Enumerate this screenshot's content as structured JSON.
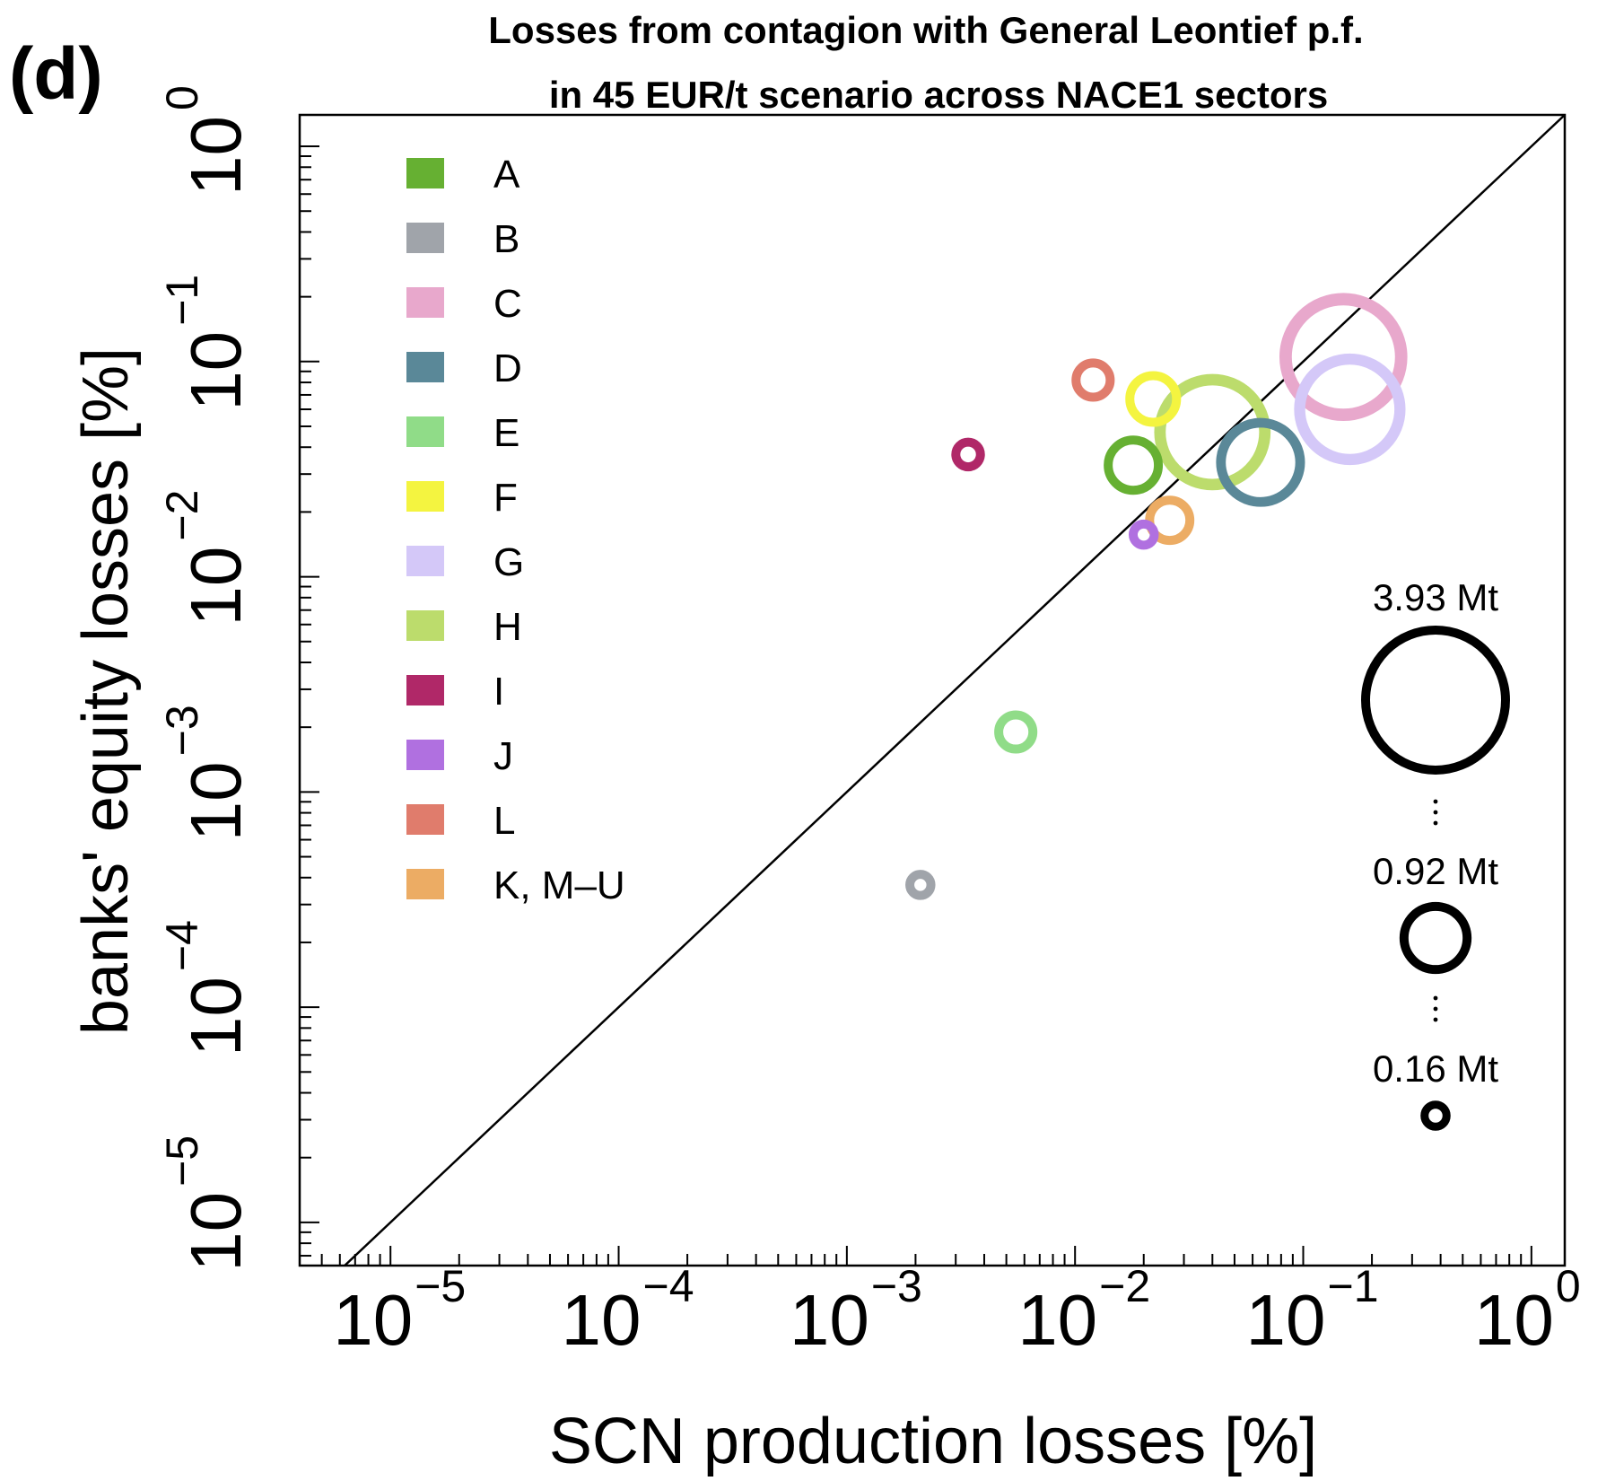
{
  "panel_label": "(d)",
  "chart_data": {
    "type": "scatter",
    "title": "Losses from contagion with General Leontief p.f.",
    "subtitle": "in 45 EUR/t scenario across NACE1 sectors",
    "xlabel": "SCN production losses [%]",
    "ylabel": "banks' equity losses [%]",
    "x_scale": "log",
    "y_scale": "log",
    "xlim": [
      4e-06,
      1.4
    ],
    "ylim": [
      6.3e-06,
      1.4
    ],
    "grid": false,
    "diagonal": "y = x",
    "x_ticks": [
      {
        "base": "10",
        "exp": "−5",
        "value": 1e-05
      },
      {
        "base": "10",
        "exp": "−4",
        "value": 0.0001
      },
      {
        "base": "10",
        "exp": "−3",
        "value": 0.001
      },
      {
        "base": "10",
        "exp": "−2",
        "value": 0.01
      },
      {
        "base": "10",
        "exp": "−1",
        "value": 0.1
      },
      {
        "base": "10",
        "exp": "0",
        "value": 1
      }
    ],
    "y_ticks": [
      {
        "base": "10",
        "exp": "−5",
        "value": 1e-05
      },
      {
        "base": "10",
        "exp": "−4",
        "value": 0.0001
      },
      {
        "base": "10",
        "exp": "−3",
        "value": 0.001
      },
      {
        "base": "10",
        "exp": "−2",
        "value": 0.01
      },
      {
        "base": "10",
        "exp": "−1",
        "value": 0.1
      },
      {
        "base": "10",
        "exp": "0",
        "value": 1
      }
    ],
    "legend_position": "top-left",
    "size_unit": "Mt",
    "series": [
      {
        "name": "A",
        "color": "#66b032",
        "x": 0.018,
        "y": 0.033,
        "size_mt": 0.62
      },
      {
        "name": "B",
        "color": "#a0a4aa",
        "x": 0.0021,
        "y": 0.00037,
        "size_mt": 0.16
      },
      {
        "name": "C",
        "color": "#e8a8cc",
        "x": 0.15,
        "y": 0.105,
        "size_mt": 2.9
      },
      {
        "name": "D",
        "color": "#5a8898",
        "x": 0.065,
        "y": 0.034,
        "size_mt": 1.4
      },
      {
        "name": "E",
        "color": "#90dc88",
        "x": 0.0055,
        "y": 0.0019,
        "size_mt": 0.33
      },
      {
        "name": "F",
        "color": "#f4f440",
        "x": 0.022,
        "y": 0.067,
        "size_mt": 0.55
      },
      {
        "name": "G",
        "color": "#d4c8f8",
        "x": 0.16,
        "y": 0.06,
        "size_mt": 2.2
      },
      {
        "name": "H",
        "color": "#bcdc6c",
        "x": 0.04,
        "y": 0.047,
        "size_mt": 2.4
      },
      {
        "name": "I",
        "color": "#b02868",
        "x": 0.0034,
        "y": 0.037,
        "size_mt": 0.2
      },
      {
        "name": "J",
        "color": "#b070e0",
        "x": 0.02,
        "y": 0.0157,
        "size_mt": 0.16
      },
      {
        "name": "L",
        "color": "#e07c6c",
        "x": 0.012,
        "y": 0.082,
        "size_mt": 0.33
      },
      {
        "name": "K, M–U",
        "color": "#ecac64",
        "x": 0.026,
        "y": 0.0183,
        "size_mt": 0.43
      }
    ],
    "size_legend": [
      {
        "label": "3.93 Mt",
        "value": 3.93
      },
      {
        "label": "0.92 Mt",
        "value": 0.92
      },
      {
        "label": "0.16 Mt",
        "value": 0.16
      }
    ]
  }
}
